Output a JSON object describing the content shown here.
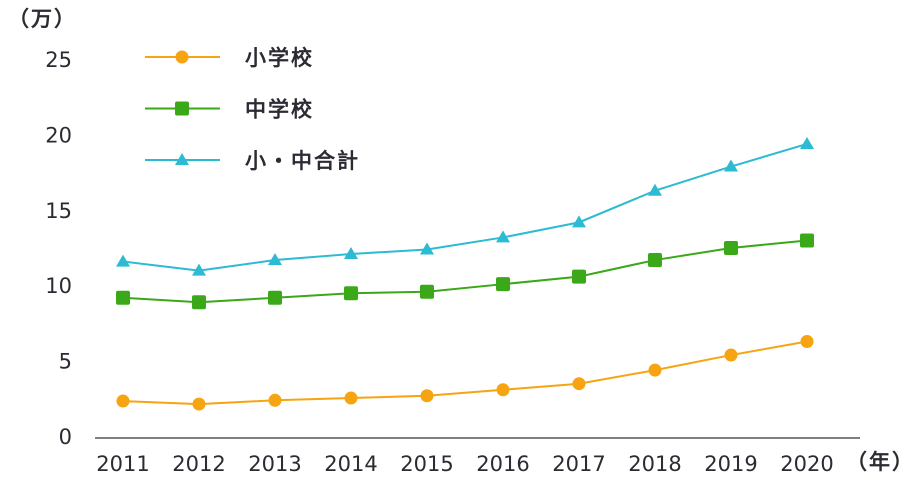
{
  "chart_data": {
    "type": "line",
    "y_label": "（万）",
    "x_label": "（年）",
    "categories": [
      "2011",
      "2012",
      "2013",
      "2014",
      "2015",
      "2016",
      "2017",
      "2018",
      "2019",
      "2020"
    ],
    "series": [
      {
        "name": "小学校",
        "color": "#f6a411",
        "marker": "circle",
        "values": [
          2.45,
          2.25,
          2.5,
          2.65,
          2.8,
          3.2,
          3.6,
          4.5,
          5.5,
          6.4
        ]
      },
      {
        "name": "中学校",
        "color": "#3aa818",
        "marker": "square",
        "values": [
          9.3,
          9.0,
          9.3,
          9.6,
          9.7,
          10.2,
          10.7,
          11.8,
          12.6,
          13.1
        ]
      },
      {
        "name": "小・中合計",
        "color": "#2dbad3",
        "marker": "triangle",
        "values": [
          11.7,
          11.1,
          11.8,
          12.2,
          12.5,
          13.3,
          14.3,
          16.4,
          18.0,
          19.5
        ]
      }
    ],
    "ylim": [
      0,
      25
    ],
    "yticks": [
      0,
      5,
      10,
      15,
      20,
      25
    ],
    "grid": false,
    "legend": "top-left"
  }
}
